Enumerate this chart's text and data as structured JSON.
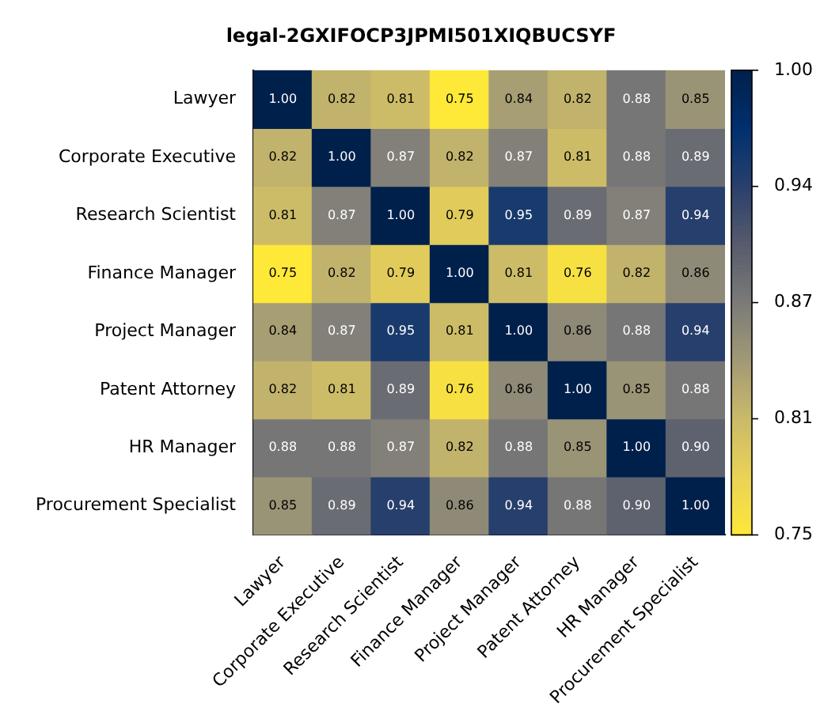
{
  "chart_data": {
    "type": "heatmap",
    "title": "legal-2GXIFOCP3JPMI501XIQBUCSYF",
    "categories": [
      "Lawyer",
      "Corporate Executive",
      "Research Scientist",
      "Finance Manager",
      "Project Manager",
      "Patent Attorney",
      "HR Manager",
      "Procurement Specialist"
    ],
    "y_categories": [
      "Lawyer",
      "Corporate Executive",
      "Research Scientist",
      "Finance Manager",
      "Project Manager",
      "Patent Attorney",
      "HR Manager",
      "Procurement Specialist"
    ],
    "cells": [
      [
        1.0,
        0.82,
        0.81,
        0.75,
        0.84,
        0.82,
        0.88,
        0.85
      ],
      [
        0.82,
        1.0,
        0.87,
        0.82,
        0.87,
        0.81,
        0.88,
        0.89
      ],
      [
        0.81,
        0.87,
        1.0,
        0.79,
        0.95,
        0.89,
        0.87,
        0.94
      ],
      [
        0.75,
        0.82,
        0.79,
        1.0,
        0.81,
        0.76,
        0.82,
        0.86
      ],
      [
        0.84,
        0.87,
        0.95,
        0.81,
        1.0,
        0.86,
        0.88,
        0.94
      ],
      [
        0.82,
        0.81,
        0.89,
        0.76,
        0.86,
        1.0,
        0.85,
        0.88
      ],
      [
        0.88,
        0.88,
        0.87,
        0.82,
        0.88,
        0.85,
        1.0,
        0.9
      ],
      [
        0.85,
        0.89,
        0.94,
        0.86,
        0.94,
        0.88,
        0.9,
        1.0
      ]
    ],
    "clim": [
      0.75,
      1.0
    ],
    "cticks": [
      {
        "value": 0.75,
        "label": "0.75"
      },
      {
        "value": 0.8125,
        "label": "0.81"
      },
      {
        "value": 0.875,
        "label": "0.87"
      },
      {
        "value": 0.9375,
        "label": "0.94"
      },
      {
        "value": 1.0,
        "label": "1.00"
      }
    ],
    "cell_labels": [
      [
        "1.00",
        "0.82",
        "0.81",
        "0.75",
        "0.84",
        "0.82",
        "0.88",
        "0.85"
      ],
      [
        "0.82",
        "1.00",
        "0.87",
        "0.82",
        "0.87",
        "0.81",
        "0.88",
        "0.89"
      ],
      [
        "0.81",
        "0.87",
        "1.00",
        "0.79",
        "0.95",
        "0.89",
        "0.87",
        "0.94"
      ],
      [
        "0.75",
        "0.82",
        "0.79",
        "1.00",
        "0.81",
        "0.76",
        "0.82",
        "0.86"
      ],
      [
        "0.84",
        "0.87",
        "0.95",
        "0.81",
        "1.00",
        "0.86",
        "0.88",
        "0.94"
      ],
      [
        "0.82",
        "0.81",
        "0.89",
        "0.76",
        "0.86",
        "1.00",
        "0.85",
        "0.88"
      ],
      [
        "0.88",
        "0.88",
        "0.87",
        "0.82",
        "0.88",
        "0.85",
        "1.00",
        "0.90"
      ],
      [
        "0.85",
        "0.89",
        "0.94",
        "0.86",
        "0.94",
        "0.88",
        "0.90",
        "1.00"
      ]
    ],
    "data_labels": true
  }
}
